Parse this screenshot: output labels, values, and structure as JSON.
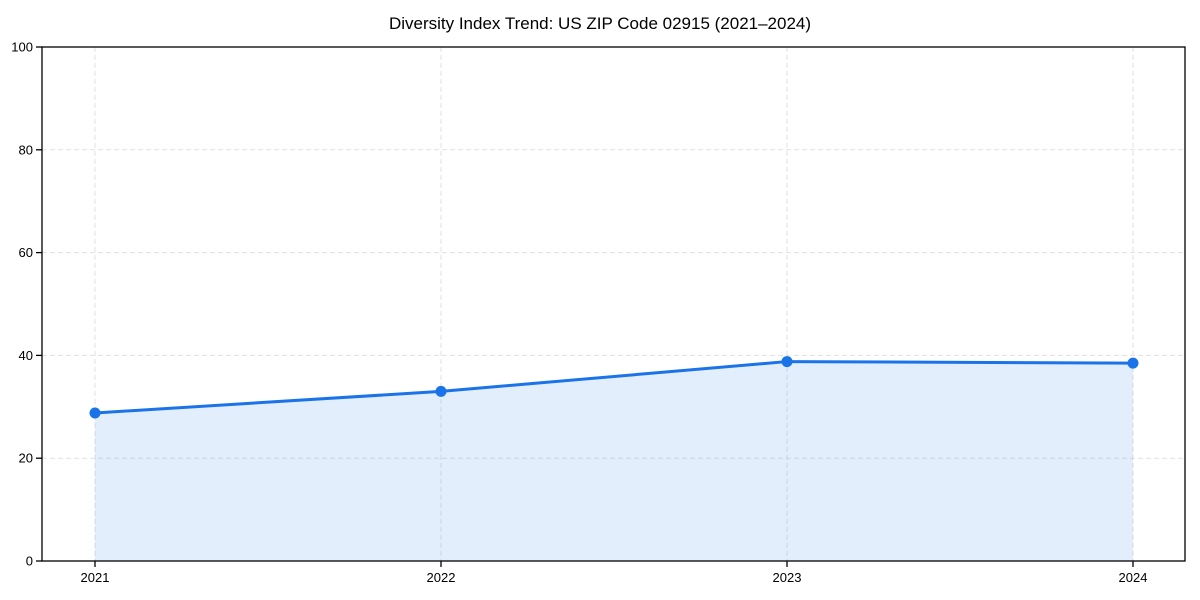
{
  "figure": {
    "background": "#ffffff"
  },
  "chart_data": {
    "type": "area",
    "title": "Diversity Index Trend: US ZIP Code 02915 (2021–2024)",
    "x": [
      2021,
      2022,
      2023,
      2024
    ],
    "xtick_labels": [
      "2021",
      "2022",
      "2023",
      "2024"
    ],
    "values": [
      28.8,
      33.0,
      38.8,
      38.5
    ],
    "xlabel": "",
    "ylabel": "",
    "ylim": [
      0,
      100
    ],
    "yticks": [
      0,
      20,
      40,
      60,
      80,
      100
    ],
    "ytick_labels": [
      "0",
      "20",
      "40",
      "60",
      "80",
      "100"
    ],
    "grid": true,
    "grid_style": "dashed",
    "legend_position": "none",
    "marker": "circle",
    "colors": {
      "line": "#1a73e8",
      "marker": "#1a73e8",
      "fill": "#1a73e8",
      "fill_opacity": 0.12,
      "grid": "#e1e1e1",
      "axis": "#000000",
      "text": "#000000",
      "background": "#ffffff"
    }
  }
}
